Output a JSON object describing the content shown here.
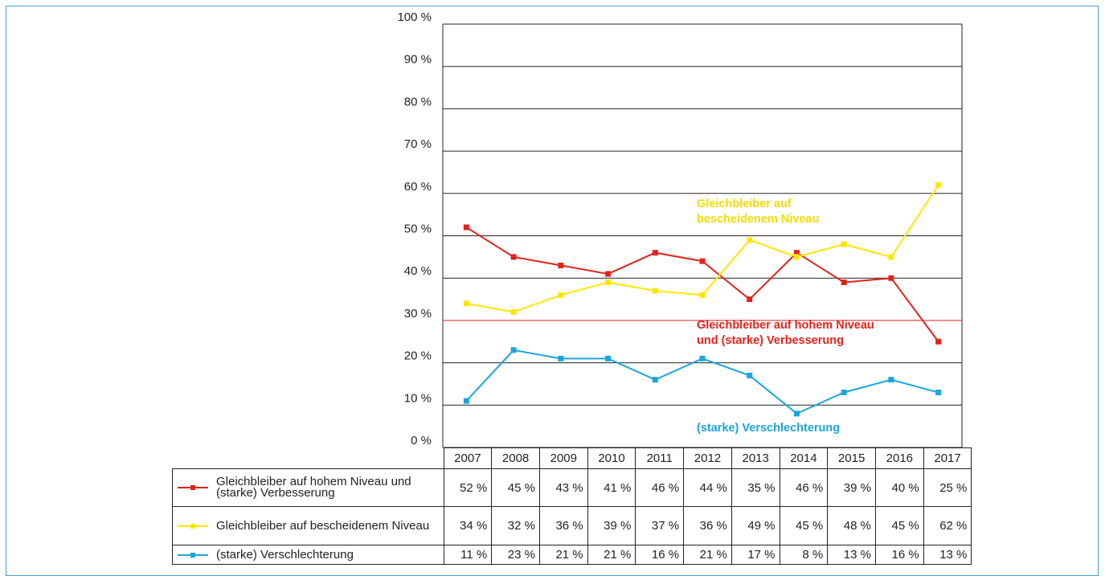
{
  "chart_data": {
    "type": "line",
    "categories": [
      "2007",
      "2008",
      "2009",
      "2010",
      "2011",
      "2012",
      "2013",
      "2014",
      "2015",
      "2016",
      "2017"
    ],
    "series": [
      {
        "name": "Gleichbleiber auf hohem Niveau und (starke) Verbesserung",
        "color": "#e2231a",
        "values": [
          52,
          45,
          43,
          41,
          46,
          44,
          35,
          46,
          39,
          40,
          25
        ],
        "value_labels": [
          "52 %",
          "45 %",
          "43 %",
          "41 %",
          "46 %",
          "44 %",
          "35 %",
          "46 %",
          "39 %",
          "40 %",
          "25 %"
        ]
      },
      {
        "name": "Gleichbleiber auf bescheidenem Niveau",
        "color": "#ffe600",
        "values": [
          34,
          32,
          36,
          39,
          37,
          36,
          49,
          45,
          48,
          45,
          62
        ],
        "value_labels": [
          "34 %",
          "32 %",
          "36 %",
          "39 %",
          "37 %",
          "36 %",
          "49 %",
          "45 %",
          "48 %",
          "45 %",
          "62 %"
        ]
      },
      {
        "name": "(starke) Verschlechterung",
        "color": "#1ba5de",
        "values": [
          11,
          23,
          21,
          21,
          16,
          21,
          17,
          8,
          13,
          16,
          13
        ],
        "value_labels": [
          "11 %",
          "23 %",
          "21 %",
          "21 %",
          "16 %",
          "21 %",
          "17 %",
          "8 %",
          "13 %",
          "16 %",
          "13 %"
        ]
      }
    ],
    "annotations": [
      {
        "lines": [
          "Gleichbleiber auf",
          "bescheidenem Niveau"
        ],
        "color": "#f2dc00"
      },
      {
        "lines": [
          "Gleichbleiber auf hohem Niveau",
          "und (starke) Verbesserung"
        ],
        "color": "#e2231a"
      },
      {
        "lines": [
          "(starke) Verschlechterung"
        ],
        "color": "#1ba5de"
      }
    ],
    "ylim": [
      0,
      100
    ],
    "yticks": [
      {
        "value": 0,
        "label": "0 %"
      },
      {
        "value": 10,
        "label": "10 %"
      },
      {
        "value": 20,
        "label": "20 %"
      },
      {
        "value": 30,
        "label": "30 %"
      },
      {
        "value": 40,
        "label": "40 %"
      },
      {
        "value": 50,
        "label": "50 %"
      },
      {
        "value": 60,
        "label": "60 %"
      },
      {
        "value": 70,
        "label": "70 %"
      },
      {
        "value": 80,
        "label": "80 %"
      },
      {
        "value": 90,
        "label": "90 %"
      },
      {
        "value": 100,
        "label": "100 %"
      }
    ],
    "grid": true,
    "highlight_gridline": {
      "value": 30,
      "color": "#e2231a"
    }
  }
}
